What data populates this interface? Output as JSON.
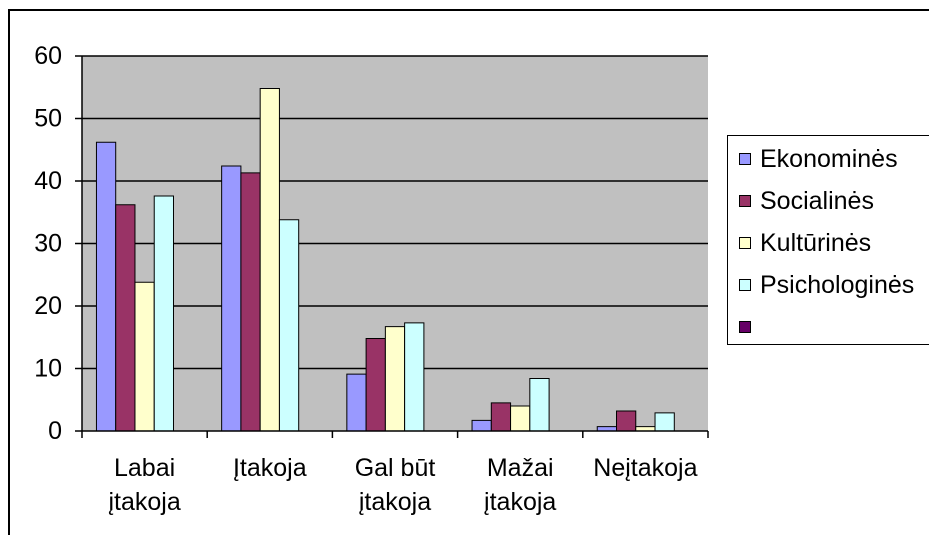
{
  "chart_data": {
    "type": "bar",
    "categories": [
      "Labai įtakoja",
      "Įtakoja",
      "Gal būt įtakoja",
      "Mažai įtakoja",
      "Neįtakoja"
    ],
    "series": [
      {
        "name": "Ekonominės",
        "color": "#9999FF",
        "values": [
          46.2,
          42.4,
          9.1,
          1.7,
          0.7
        ]
      },
      {
        "name": "Socialinės",
        "color": "#993366",
        "values": [
          36.2,
          41.3,
          14.8,
          4.5,
          3.2
        ]
      },
      {
        "name": "Kultūrinės",
        "color": "#FFFFCC",
        "values": [
          23.8,
          54.8,
          16.7,
          4.0,
          0.7
        ]
      },
      {
        "name": "Psichologinės",
        "color": "#CCFFFF",
        "values": [
          37.6,
          33.8,
          17.3,
          8.4,
          2.9
        ]
      },
      {
        "name": "",
        "color": "#660066",
        "values": [
          null,
          null,
          null,
          null,
          null
        ]
      }
    ],
    "ylim": [
      0,
      60
    ],
    "yticks": [
      0,
      10,
      20,
      30,
      40,
      50,
      60
    ],
    "grid": true,
    "legend": "right",
    "plot_background": "#C0C0C0"
  }
}
